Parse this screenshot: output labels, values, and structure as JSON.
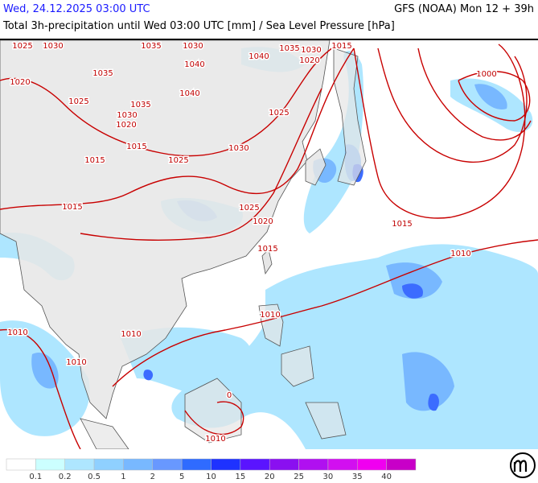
{
  "header": {
    "valid_time": "Wed, 24.12.2025 03:00 UTC",
    "model_run": "GFS (NOAA) Mon 12 + 39h",
    "subtitle": "Total 3h-precipitation until Wed 03:00 UTC [mm] / Sea Level Pressure [hPa]"
  },
  "isobar_labels": [
    "1025",
    "1030",
    "1035",
    "1030",
    "1040",
    "1035",
    "1030",
    "1015",
    "1020",
    "1000",
    "1020",
    "1035",
    "1040",
    "1040",
    "1025",
    "1035",
    "1030",
    "1020",
    "1025",
    "1015",
    "1030",
    "1015",
    "1025",
    "1015",
    "1025",
    "1020",
    "1015",
    "1015",
    "1010",
    "1010",
    "1010",
    "1010",
    "1010",
    "0",
    "1010"
  ],
  "legend": {
    "colors": [
      "#ffffff",
      "#ccffff",
      "#aee6ff",
      "#8fd0ff",
      "#78b8ff",
      "#6898ff",
      "#2f6bff",
      "#1e32ff",
      "#5a14ff",
      "#8a10f0",
      "#b010f0",
      "#d20ff0",
      "#f000f0",
      "#c800c8"
    ],
    "labels": [
      0.1,
      0.2,
      0.5,
      1,
      2,
      5,
      10,
      15,
      20,
      25,
      30,
      35,
      40
    ]
  }
}
